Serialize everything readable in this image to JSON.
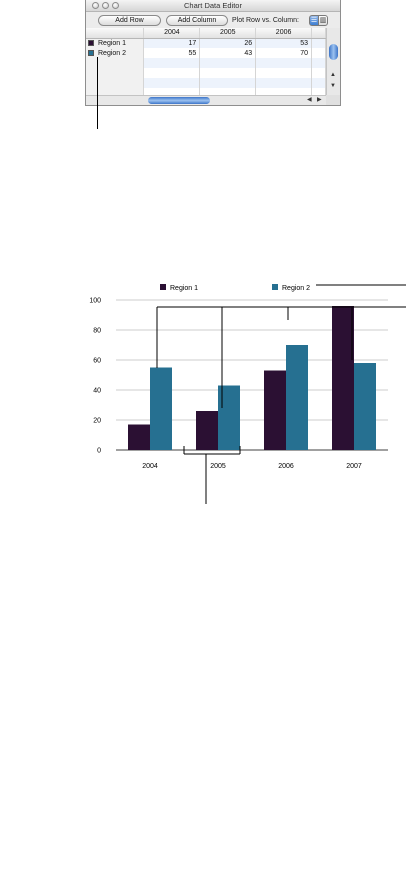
{
  "editor": {
    "title": "Chart Data Editor",
    "buttons": {
      "add_row": "Add Row",
      "add_column": "Add Column"
    },
    "plot_label": "Plot Row vs. Column:",
    "columns": [
      "2004",
      "2005",
      "2006"
    ],
    "rows": [
      {
        "name": "Region 1",
        "color": "#2b1033",
        "values": [
          "17",
          "26",
          "53"
        ]
      },
      {
        "name": "Region 2",
        "color": "#267091",
        "values": [
          "55",
          "43",
          "70"
        ]
      }
    ]
  },
  "chart_data": {
    "type": "bar",
    "categories": [
      "2004",
      "2005",
      "2006",
      "2007"
    ],
    "series": [
      {
        "name": "Region 1",
        "color": "#2b1033",
        "values": [
          17,
          26,
          53,
          96
        ]
      },
      {
        "name": "Region 2",
        "color": "#267091",
        "values": [
          55,
          43,
          70,
          58
        ]
      }
    ],
    "yticks": [
      "0",
      "20",
      "40",
      "60",
      "80",
      "100"
    ],
    "ylim": [
      0,
      100
    ],
    "grid": true,
    "legend": "top"
  }
}
